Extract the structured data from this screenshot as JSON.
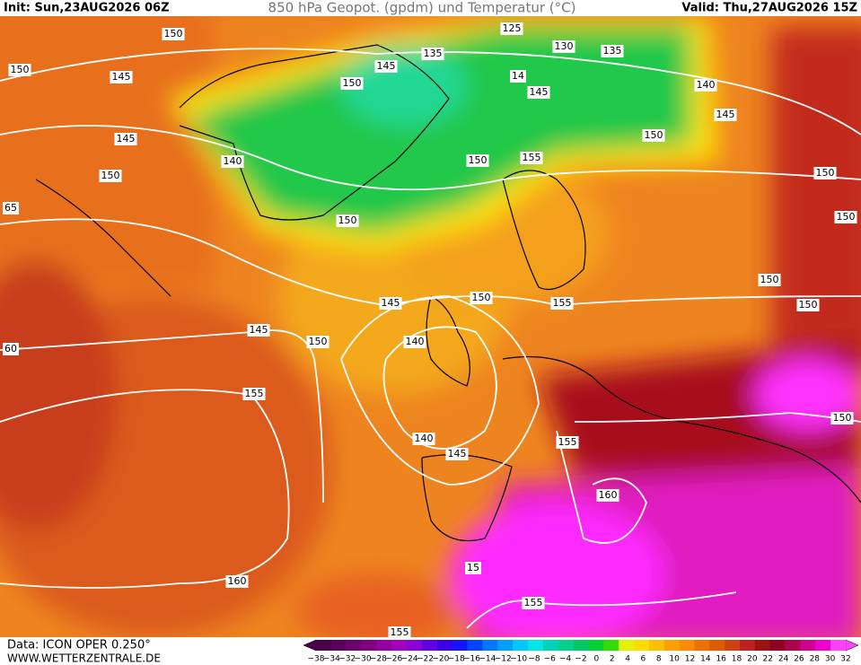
{
  "header": {
    "init": "Init: Sun,23AUG2026 06Z",
    "title": "850 hPa Geopot. (gpdm) und Temperatur (°C)",
    "valid": "Valid: Thu,27AUG2026 15Z"
  },
  "map": {
    "contour_labels": [
      "150",
      "150",
      "145",
      "125",
      "130",
      "135",
      "135",
      "145",
      "14",
      "145",
      "140",
      "145",
      "150",
      "145",
      "140",
      "150",
      "150",
      "155",
      "150",
      "150",
      "150",
      "150",
      "65",
      "150",
      "150",
      "145",
      "150",
      "155",
      "145",
      "150",
      "140",
      "60",
      "155",
      "140",
      "145",
      "155",
      "150",
      "160",
      "160",
      "155",
      "155",
      "15"
    ]
  },
  "footer": {
    "data": "Data: ICON OPER 0.250°",
    "site": "WWW.WETTERZENTRALE.DE"
  },
  "colorbar": {
    "labels": [
      "−38",
      "−34",
      "−32",
      "−30",
      "−28",
      "−26",
      "−24",
      "−22",
      "−20",
      "−18",
      "−16",
      "−14",
      "−12",
      "−10",
      "−8",
      "−6",
      "−4",
      "−2",
      "0",
      "2",
      "4",
      "6",
      "8",
      "10",
      "12",
      "14",
      "16",
      "18",
      "20",
      "22",
      "24",
      "26",
      "28",
      "30",
      "32"
    ],
    "colors": [
      "#4b004b",
      "#5c005c",
      "#6e006e",
      "#800080",
      "#9400a0",
      "#a000c0",
      "#8c00d8",
      "#6400e0",
      "#3c00e6",
      "#1414ff",
      "#0046ff",
      "#0078ff",
      "#00a0ff",
      "#00c8ff",
      "#00e6e6",
      "#00d2b4",
      "#00d28c",
      "#00c864",
      "#00d232",
      "#32dc00",
      "#e6f000",
      "#ffdc00",
      "#ffc000",
      "#ffa000",
      "#ff8c00",
      "#f07000",
      "#e05a00",
      "#d04010",
      "#c02020",
      "#a01010",
      "#900020",
      "#b00050",
      "#d00090",
      "#f000d0",
      "#ff40ff"
    ]
  }
}
